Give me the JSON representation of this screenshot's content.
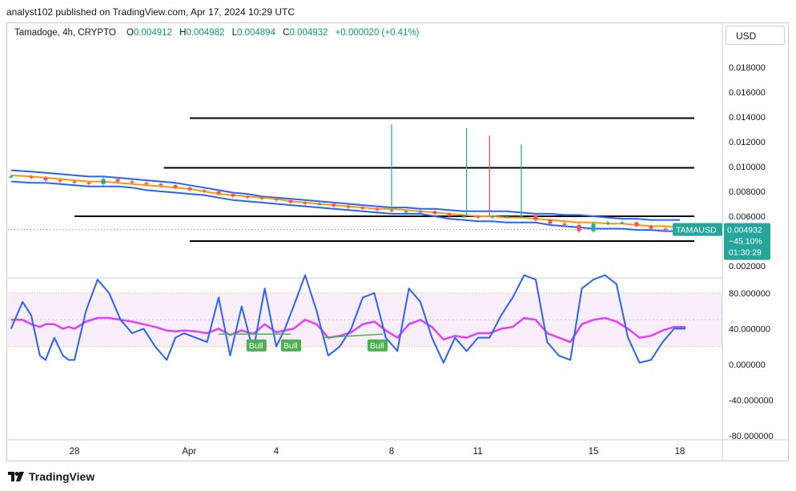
{
  "header": {
    "publisher": "analyst102 published on TradingView.com, Apr 17, 2024 10:29 UTC"
  },
  "legend": {
    "symbol": "Tamadoge, 4h, CRYPTO",
    "open_label": "O",
    "open": "0.004912",
    "high_label": "H",
    "high": "0.004982",
    "low_label": "L",
    "low": "0.004894",
    "close_label": "C",
    "close": "0.004932",
    "change": "+0.000020 (+0.41%)"
  },
  "currency_button": "USD",
  "price_tag": {
    "symbol": "TAMAUSD",
    "price": "0.004932",
    "change": "−45.10%",
    "countdown": "01:30:29"
  },
  "footer": {
    "brand": "TradingView"
  },
  "colors": {
    "up": "#089981",
    "down": "#f23645",
    "bb": "#2962ff",
    "ma": "#ff9800",
    "stoch_k": "#2962ff",
    "stoch_d": "#e040fb",
    "tag": "#26a69a",
    "bull": "#4caf50"
  },
  "chart_data": [
    {
      "type": "line",
      "name": "price",
      "x_ticks": [
        "28",
        "Apr",
        "4",
        "8",
        "11",
        "15",
        "18"
      ],
      "x_tick_days": [
        -4,
        0,
        3,
        7,
        10,
        14,
        17
      ],
      "y_ticks": [
        "0.002000",
        "0.006000",
        "0.008000",
        "0.010000",
        "0.012000",
        "0.014000",
        "0.016000",
        "0.018000"
      ],
      "ylim": [
        0.002,
        0.0185
      ],
      "xlim_days": [
        -6.3,
        18.5
      ],
      "close_series": {
        "day": [
          -6.2,
          -5.5,
          -5,
          -4.5,
          -4,
          -3.5,
          -3,
          -2.5,
          -2,
          -1.5,
          -1,
          -0.5,
          0,
          0.5,
          1,
          1.5,
          2,
          2.5,
          3,
          3.5,
          4,
          4.5,
          5,
          5.5,
          6,
          6.5,
          7,
          7.5,
          8,
          8.5,
          9,
          9.5,
          10,
          10.5,
          11,
          11.5,
          12,
          12.5,
          13,
          13.5,
          14,
          14.5,
          15,
          15.5,
          16,
          16.5,
          17
        ],
        "price": [
          0.0092,
          0.0091,
          0.0089,
          0.0088,
          0.0087,
          0.0086,
          0.009,
          0.0088,
          0.0087,
          0.0086,
          0.0085,
          0.0083,
          0.0081,
          0.008,
          0.0078,
          0.0076,
          0.0075,
          0.0074,
          0.0073,
          0.0071,
          0.007,
          0.007,
          0.0068,
          0.0067,
          0.0066,
          0.0065,
          0.0064,
          0.0064,
          0.0064,
          0.0062,
          0.006,
          0.006,
          0.0059,
          0.006,
          0.006,
          0.0061,
          0.0057,
          0.0054,
          0.0053,
          0.0048,
          0.0054,
          0.0055,
          0.0055,
          0.0052,
          0.005,
          0.0049,
          0.0049
        ]
      },
      "bollinger_upper": [
        0.0097,
        0.0096,
        0.0095,
        0.0094,
        0.0093,
        0.0092,
        0.0092,
        0.0091,
        0.009,
        0.0089,
        0.0088,
        0.0087,
        0.0085,
        0.0083,
        0.0081,
        0.0079,
        0.0078,
        0.0076,
        0.0075,
        0.0074,
        0.0073,
        0.0072,
        0.0071,
        0.007,
        0.0069,
        0.0068,
        0.0067,
        0.0067,
        0.0066,
        0.0066,
        0.0065,
        0.0064,
        0.0064,
        0.0064,
        0.0064,
        0.0063,
        0.0062,
        0.0062,
        0.0061,
        0.0061,
        0.006,
        0.0059,
        0.0058,
        0.0058,
        0.0057,
        0.0057,
        0.0057
      ],
      "bollinger_lower": [
        0.0088,
        0.0087,
        0.0087,
        0.0086,
        0.0085,
        0.0084,
        0.0084,
        0.0084,
        0.0083,
        0.0081,
        0.008,
        0.0079,
        0.0078,
        0.0077,
        0.0075,
        0.0073,
        0.0072,
        0.0071,
        0.007,
        0.0069,
        0.0068,
        0.0067,
        0.0066,
        0.0065,
        0.0064,
        0.0063,
        0.0062,
        0.0062,
        0.0062,
        0.006,
        0.0058,
        0.0057,
        0.0056,
        0.0056,
        0.0055,
        0.0055,
        0.0055,
        0.0053,
        0.0052,
        0.0051,
        0.005,
        0.005,
        0.005,
        0.0049,
        0.0049,
        0.0048,
        0.0048
      ],
      "moving_average": [
        0.0093,
        0.0092,
        0.0091,
        0.009,
        0.0089,
        0.0088,
        0.0088,
        0.0087,
        0.0086,
        0.0085,
        0.0084,
        0.0083,
        0.0082,
        0.008,
        0.0078,
        0.0077,
        0.0076,
        0.0075,
        0.0074,
        0.0072,
        0.0071,
        0.007,
        0.0069,
        0.0068,
        0.0067,
        0.0066,
        0.0066,
        0.0065,
        0.0064,
        0.0063,
        0.0062,
        0.0061,
        0.006,
        0.006,
        0.0059,
        0.0059,
        0.0058,
        0.0057,
        0.0056,
        0.0055,
        0.0055,
        0.0054,
        0.0054,
        0.0053,
        0.0052,
        0.0052,
        0.0051
      ],
      "wicks": [
        {
          "day": 7.0,
          "high": 0.0134,
          "low": 0.0064,
          "color": "#26a69a"
        },
        {
          "day": 9.6,
          "high": 0.0131,
          "low": 0.006,
          "color": "#26a69a"
        },
        {
          "day": 10.4,
          "high": 0.0125,
          "low": 0.006,
          "color": "#ef5350"
        },
        {
          "day": 11.5,
          "high": 0.0118,
          "low": 0.006,
          "color": "#26a69a"
        }
      ],
      "horizontal_levels": [
        {
          "price": 0.0139,
          "from_day": 0,
          "to_day": 17.5
        },
        {
          "price": 0.0099,
          "from_day": -0.9,
          "to_day": 17.5
        },
        {
          "price": 0.006,
          "from_day": -4,
          "to_day": 17.5
        },
        {
          "price": 0.004,
          "from_day": 0,
          "to_day": 17.5
        }
      ],
      "current_price": 0.004932
    },
    {
      "type": "line",
      "name": "stochastic",
      "y_ticks": [
        "80.000000",
        "40.000000",
        "0.000000",
        "-40.000000",
        "-80.000000"
      ],
      "ylim": [
        -85,
        110
      ],
      "band": [
        20,
        80
      ],
      "k_day": [
        -6.2,
        -5.8,
        -5.5,
        -5.2,
        -5,
        -4.7,
        -4.4,
        -4.2,
        -4,
        -3.6,
        -3.2,
        -2.8,
        -2.4,
        -2,
        -1.6,
        -1.2,
        -0.8,
        -0.5,
        -0.2,
        0.2,
        0.6,
        1,
        1.4,
        1.8,
        2.2,
        2.6,
        3,
        3.3,
        3.6,
        4,
        4.4,
        4.8,
        5.2,
        5.6,
        6,
        6.4,
        6.8,
        7.2,
        7.6,
        8,
        8.4,
        8.8,
        9.2,
        9.6,
        10,
        10.4,
        10.8,
        11.2,
        11.6,
        12,
        12.4,
        12.8,
        13.2,
        13.6,
        14,
        14.4,
        14.8,
        15.2,
        15.6,
        16,
        16.4,
        16.8,
        17.2
      ],
      "k": [
        40,
        70,
        55,
        10,
        5,
        30,
        10,
        5,
        5,
        60,
        95,
        80,
        50,
        35,
        40,
        20,
        5,
        30,
        35,
        30,
        25,
        75,
        10,
        65,
        15,
        85,
        20,
        40,
        65,
        100,
        60,
        10,
        20,
        40,
        75,
        80,
        30,
        15,
        85,
        70,
        30,
        2,
        30,
        15,
        30,
        30,
        55,
        75,
        100,
        95,
        25,
        10,
        5,
        85,
        95,
        100,
        90,
        30,
        2,
        5,
        25,
        40,
        40
      ],
      "d": [
        50,
        50,
        45,
        42,
        45,
        45,
        40,
        42,
        40,
        48,
        52,
        52,
        50,
        48,
        45,
        42,
        38,
        37,
        38,
        37,
        35,
        40,
        33,
        38,
        34,
        45,
        36,
        38,
        40,
        50,
        45,
        30,
        32,
        36,
        45,
        48,
        38,
        30,
        45,
        50,
        42,
        28,
        32,
        30,
        35,
        35,
        40,
        42,
        52,
        50,
        35,
        30,
        25,
        45,
        50,
        52,
        48,
        40,
        30,
        32,
        38,
        42,
        42
      ],
      "bull_labels": [
        {
          "day": 2.3,
          "value": 28,
          "label": "Bull"
        },
        {
          "day": 3.5,
          "value": 28,
          "label": "Bull"
        },
        {
          "day": 6.5,
          "value": 28,
          "label": "Bull"
        }
      ],
      "divergence_lines": [
        {
          "from_day": 1.0,
          "from_value": 34,
          "to_day": 3.5,
          "to_value": 34
        },
        {
          "from_day": 4.6,
          "from_value": 30,
          "to_day": 6.7,
          "to_value": 34
        }
      ]
    }
  ]
}
